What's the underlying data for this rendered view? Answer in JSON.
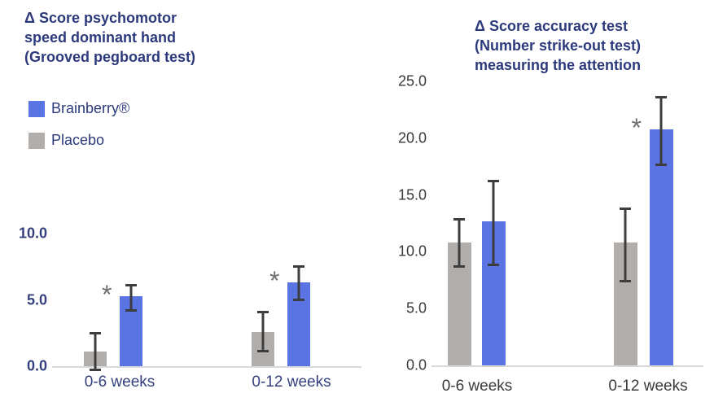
{
  "page": {
    "background": "#ffffff"
  },
  "colors": {
    "title_navy": "#2c3a7c",
    "axis_label_navy": "#35407e",
    "axis_label_dark": "#3a3a3a",
    "bar_blue": "#5b74e4",
    "bar_gray": "#b2aeab",
    "error_bar": "#3d3d3d",
    "asterisk": "#6e6e6e",
    "axis_line": "#d9d9d9"
  },
  "legend": {
    "items": [
      {
        "label": "Brainberry®",
        "color": "#5b74e4"
      },
      {
        "label": "Placebo",
        "color": "#b2aeab"
      }
    ]
  },
  "chart_data": [
    {
      "type": "bar",
      "title": "Δ Score psychomotor speed dominant hand (Grooved pegboard test)",
      "title_lines": [
        "Δ Score psychomotor",
        "speed dominant hand",
        "(Grooved pegboard test)"
      ],
      "categories": [
        "0-6 weeks",
        "0-12 weeks"
      ],
      "series": [
        {
          "name": "Placebo",
          "color": "#b2aeab",
          "values": [
            1.1,
            2.6
          ],
          "error_low": [
            -0.3,
            1.1
          ],
          "error_high": [
            2.6,
            4.2
          ],
          "significant": [
            false,
            false
          ]
        },
        {
          "name": "Brainberry®",
          "color": "#5b74e4",
          "values": [
            5.3,
            6.3
          ],
          "error_low": [
            4.2,
            5.0
          ],
          "error_high": [
            6.2,
            7.6
          ],
          "significant": [
            true,
            true
          ]
        }
      ],
      "ytick_labels": [
        "0.0",
        "5.0",
        "10.0"
      ],
      "ytick_values": [
        0,
        5,
        10
      ],
      "ylim": [
        0,
        10
      ],
      "grid": false,
      "legend_position": "outside-upper-left",
      "significance_marker": "*",
      "xlabel": "",
      "ylabel": ""
    },
    {
      "type": "bar",
      "title": "Δ Score accuracy test (Number strike-out test) measuring the attention",
      "title_lines": [
        "Δ Score accuracy test",
        "(Number strike-out test)",
        "measuring the attention"
      ],
      "categories": [
        "0-6 weeks",
        "0-12 weeks"
      ],
      "series": [
        {
          "name": "Placebo",
          "color": "#b2aeab",
          "values": [
            10.8,
            10.8
          ],
          "error_low": [
            8.7,
            7.4
          ],
          "error_high": [
            13.0,
            13.9
          ],
          "significant": [
            false,
            false
          ]
        },
        {
          "name": "Brainberry®",
          "color": "#5b74e4",
          "values": [
            12.7,
            20.8
          ],
          "error_low": [
            8.8,
            17.6
          ],
          "error_high": [
            16.3,
            23.7
          ],
          "significant": [
            false,
            true
          ]
        }
      ],
      "ytick_labels": [
        "0.0",
        "5.0",
        "10.0",
        "15.0",
        "20.0",
        "25.0"
      ],
      "ytick_values": [
        0,
        5,
        10,
        15,
        20,
        25
      ],
      "ylim": [
        0,
        25
      ],
      "grid": false,
      "legend_position": "none",
      "significance_marker": "*",
      "xlabel": "",
      "ylabel": ""
    }
  ]
}
